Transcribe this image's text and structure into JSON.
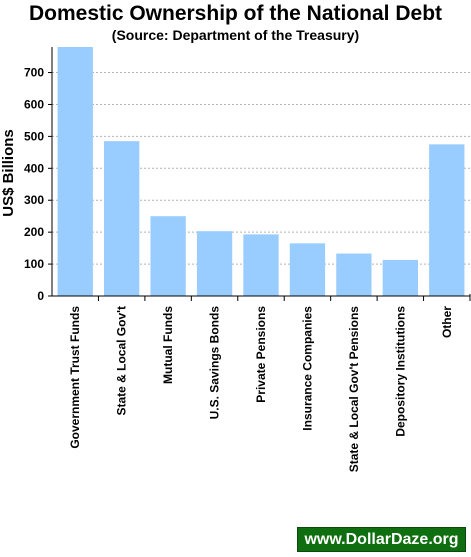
{
  "chart_data": {
    "type": "bar",
    "title": "Domestic Ownership of the National Debt",
    "subtitle": "(Source: Department of the Treasury)",
    "xlabel": "",
    "ylabel": "US$ Billions",
    "ylim": [
      0,
      780
    ],
    "yticks": [
      0,
      100,
      200,
      300,
      400,
      500,
      600,
      700
    ],
    "grid": true,
    "legend": "none",
    "categories": [
      "Government Trust Funds",
      "State & Local Gov't",
      "Mutual Funds",
      "U.S. Savings Bonds",
      "Private Pensions",
      "Insurance Companies",
      "State & Local Gov't Pensions",
      "Depository Institutions",
      "Other"
    ],
    "values": [
      780,
      485,
      250,
      203,
      193,
      165,
      133,
      113,
      475
    ],
    "bar_color": "#99ccff"
  },
  "watermark": "www.DollarDaze.org"
}
